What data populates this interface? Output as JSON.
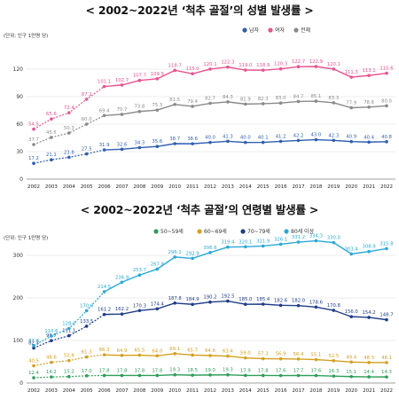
{
  "chart_data": [
    {
      "type": "line",
      "title": "< 2002~2022년 ‘척추 골절’의 성별 발생률 >",
      "unit": "(단위: 인구 1만명 당)",
      "x": [
        "2002",
        "2003",
        "2004",
        "2005",
        "2006",
        "2007",
        "2008",
        "2009",
        "2010",
        "2011",
        "2012",
        "2013",
        "2014",
        "2015",
        "2016",
        "2017",
        "2018",
        "2019",
        "2020",
        "2021",
        "2022"
      ],
      "ylim": [
        0,
        120
      ],
      "yticks": [
        0,
        30,
        60,
        90,
        120
      ],
      "grid": true,
      "legend_position": "top-right",
      "series": [
        {
          "name": "남자",
          "color": "#2e5fb0",
          "values": [
            17.2,
            21.1,
            23.8,
            27.5,
            31.9,
            32.6,
            34.3,
            35.6,
            38.7,
            38.6,
            40.0,
            41.3,
            40.0,
            40.1,
            41.2,
            42.2,
            43.0,
            42.3,
            40.9,
            40.4,
            40.8
          ]
        },
        {
          "name": "여자",
          "color": "#e8528f",
          "values": [
            54.5,
            65.6,
            72.4,
            87.2,
            101.1,
            102.7,
            107.7,
            109.5,
            118.7,
            115.0,
            120.1,
            122.3,
            119.0,
            118.9,
            120.3,
            122.7,
            122.9,
            120.1,
            111.3,
            113.1,
            115.6
          ]
        },
        {
          "name": "전체",
          "color": "#8a8a8a",
          "values": [
            37.7,
            45.5,
            50.3,
            60.0,
            69.4,
            70.7,
            73.8,
            75.3,
            81.5,
            79.4,
            82.7,
            84.3,
            81.9,
            82.3,
            83.0,
            84.7,
            85.1,
            83.3,
            77.9,
            78.6,
            80.0
          ]
        }
      ]
    },
    {
      "type": "line",
      "title": "< 2002~2022년 ‘척추 골절’의 연령별 발생률 >",
      "unit": "(단위: 인구 1만명 당)",
      "x": [
        "2002",
        "2003",
        "2004",
        "2005",
        "2006",
        "2007",
        "2008",
        "2009",
        "2010",
        "2011",
        "2012",
        "2013",
        "2014",
        "2015",
        "2016",
        "2017",
        "2018",
        "2019",
        "2020",
        "2021",
        "2022"
      ],
      "ylim": [
        0,
        300
      ],
      "yticks": [
        0,
        100,
        200,
        300
      ],
      "grid": true,
      "legend_position": "top-right",
      "series": [
        {
          "name": "50~59세",
          "color": "#2e9e5a",
          "values": [
            12.4,
            14.2,
            15.2,
            17.0,
            17.8,
            17.8,
            17.8,
            17.8,
            19.3,
            18.5,
            19.0,
            19.3,
            17.9,
            17.8,
            17.6,
            17.7,
            17.6,
            16.3,
            15.1,
            14.4,
            14.3
          ]
        },
        {
          "name": "60~69세",
          "color": "#d4a020",
          "values": [
            40.5,
            48.6,
            52.8,
            61.3,
            66.3,
            64.9,
            65.5,
            64.0,
            69.1,
            65.7,
            64.6,
            63.4,
            59.0,
            57.3,
            56.9,
            56.4,
            55.1,
            52.5,
            49.4,
            48.3,
            48.1
          ]
        },
        {
          "name": "70~79세",
          "color": "#1f3c88",
          "values": [
            82.3,
            99.7,
            111.1,
            133.5,
            161.2,
            162.2,
            170.3,
            174.4,
            187.8,
            184.9,
            190.2,
            192.5,
            185.0,
            185.4,
            182.6,
            182.0,
            178.6,
            170.8,
            156.0,
            154.2,
            148.7
          ]
        },
        {
          "name": "80세 이상",
          "color": "#2aa9d8",
          "values": [
            87.8,
            110.6,
            128.0,
            170.0,
            214.5,
            236.9,
            253.7,
            267.8,
            296.1,
            292.9,
            306.6,
            319.4,
            320.1,
            321.9,
            326.1,
            331.2,
            334.3,
            330.0,
            303.4,
            308.9,
            315.8
          ]
        }
      ]
    }
  ]
}
